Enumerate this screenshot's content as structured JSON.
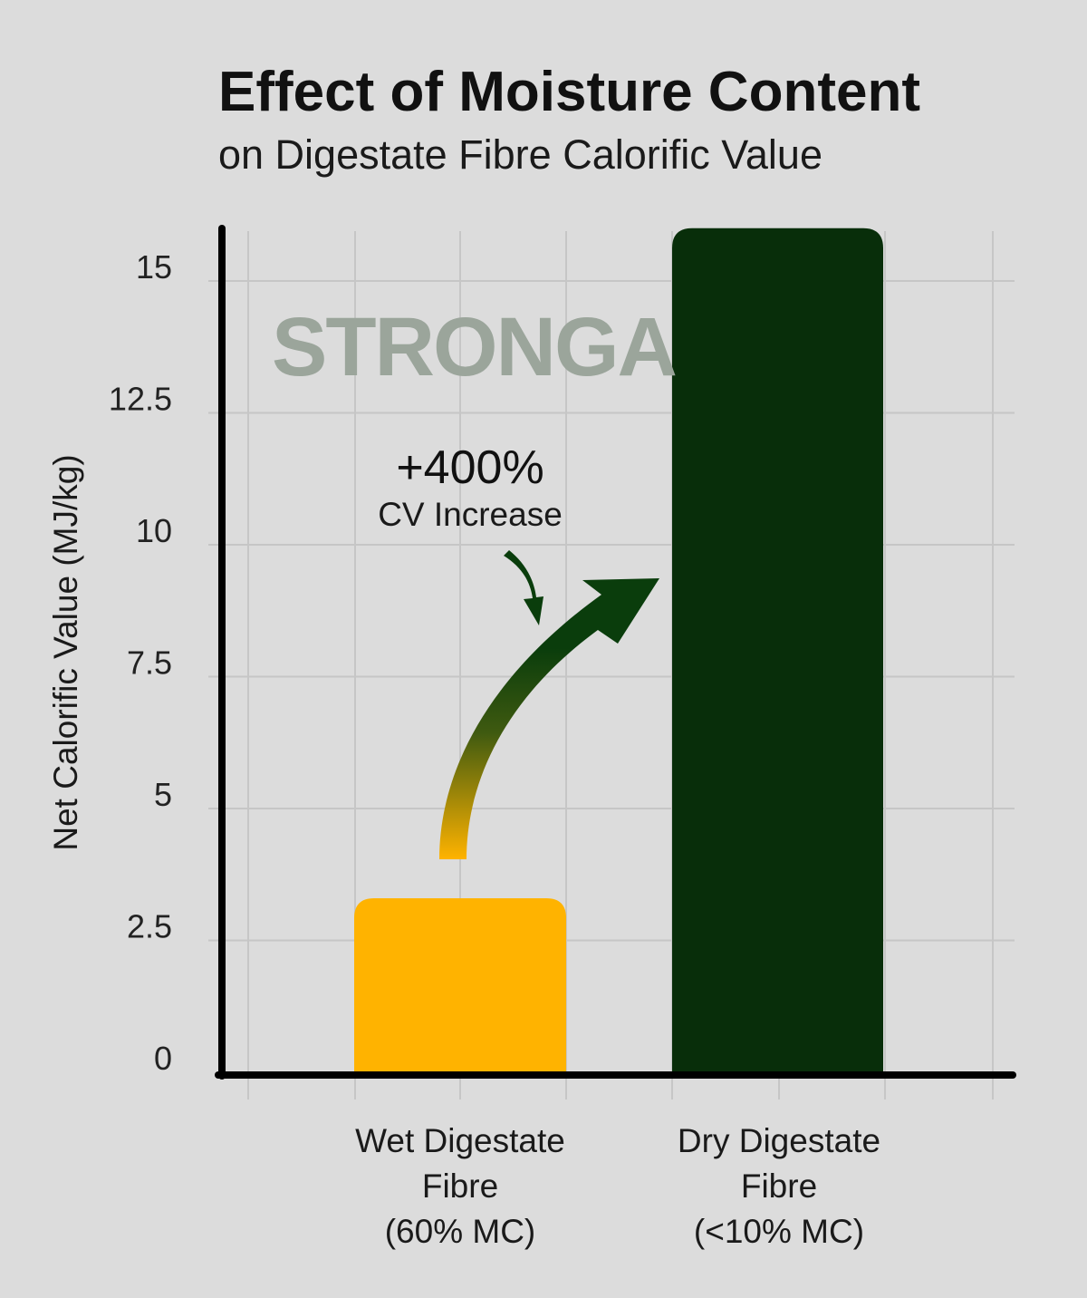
{
  "chart_data": {
    "type": "bar",
    "title": "Effect of Moisture Content",
    "subtitle": "on Digestate Fibre Calorific Value",
    "ylabel": "Net Calorific Value (MJ/kg)",
    "xlabel": "",
    "ylim": [
      0,
      16
    ],
    "yticks": [
      "0",
      "2.5",
      "5",
      "7.5",
      "10",
      "12.5",
      "15"
    ],
    "ytick_values": [
      0,
      2.5,
      5,
      7.5,
      10,
      12.5,
      15
    ],
    "grid": true,
    "categories": [
      [
        "Wet Digestate",
        "Fibre",
        "(60% MC)"
      ],
      [
        "Dry Digestate",
        "Fibre",
        "(<10% MC)"
      ]
    ],
    "values": [
      3.3,
      16.0
    ],
    "bar_colors": [
      "#ffb300",
      "#082e0a"
    ],
    "annotation": {
      "main": "+400%",
      "sub": "CV Increase"
    },
    "watermark": "STRONGA",
    "arrow_colors": {
      "start": "#ffb300",
      "end": "#0a3d0c"
    }
  }
}
